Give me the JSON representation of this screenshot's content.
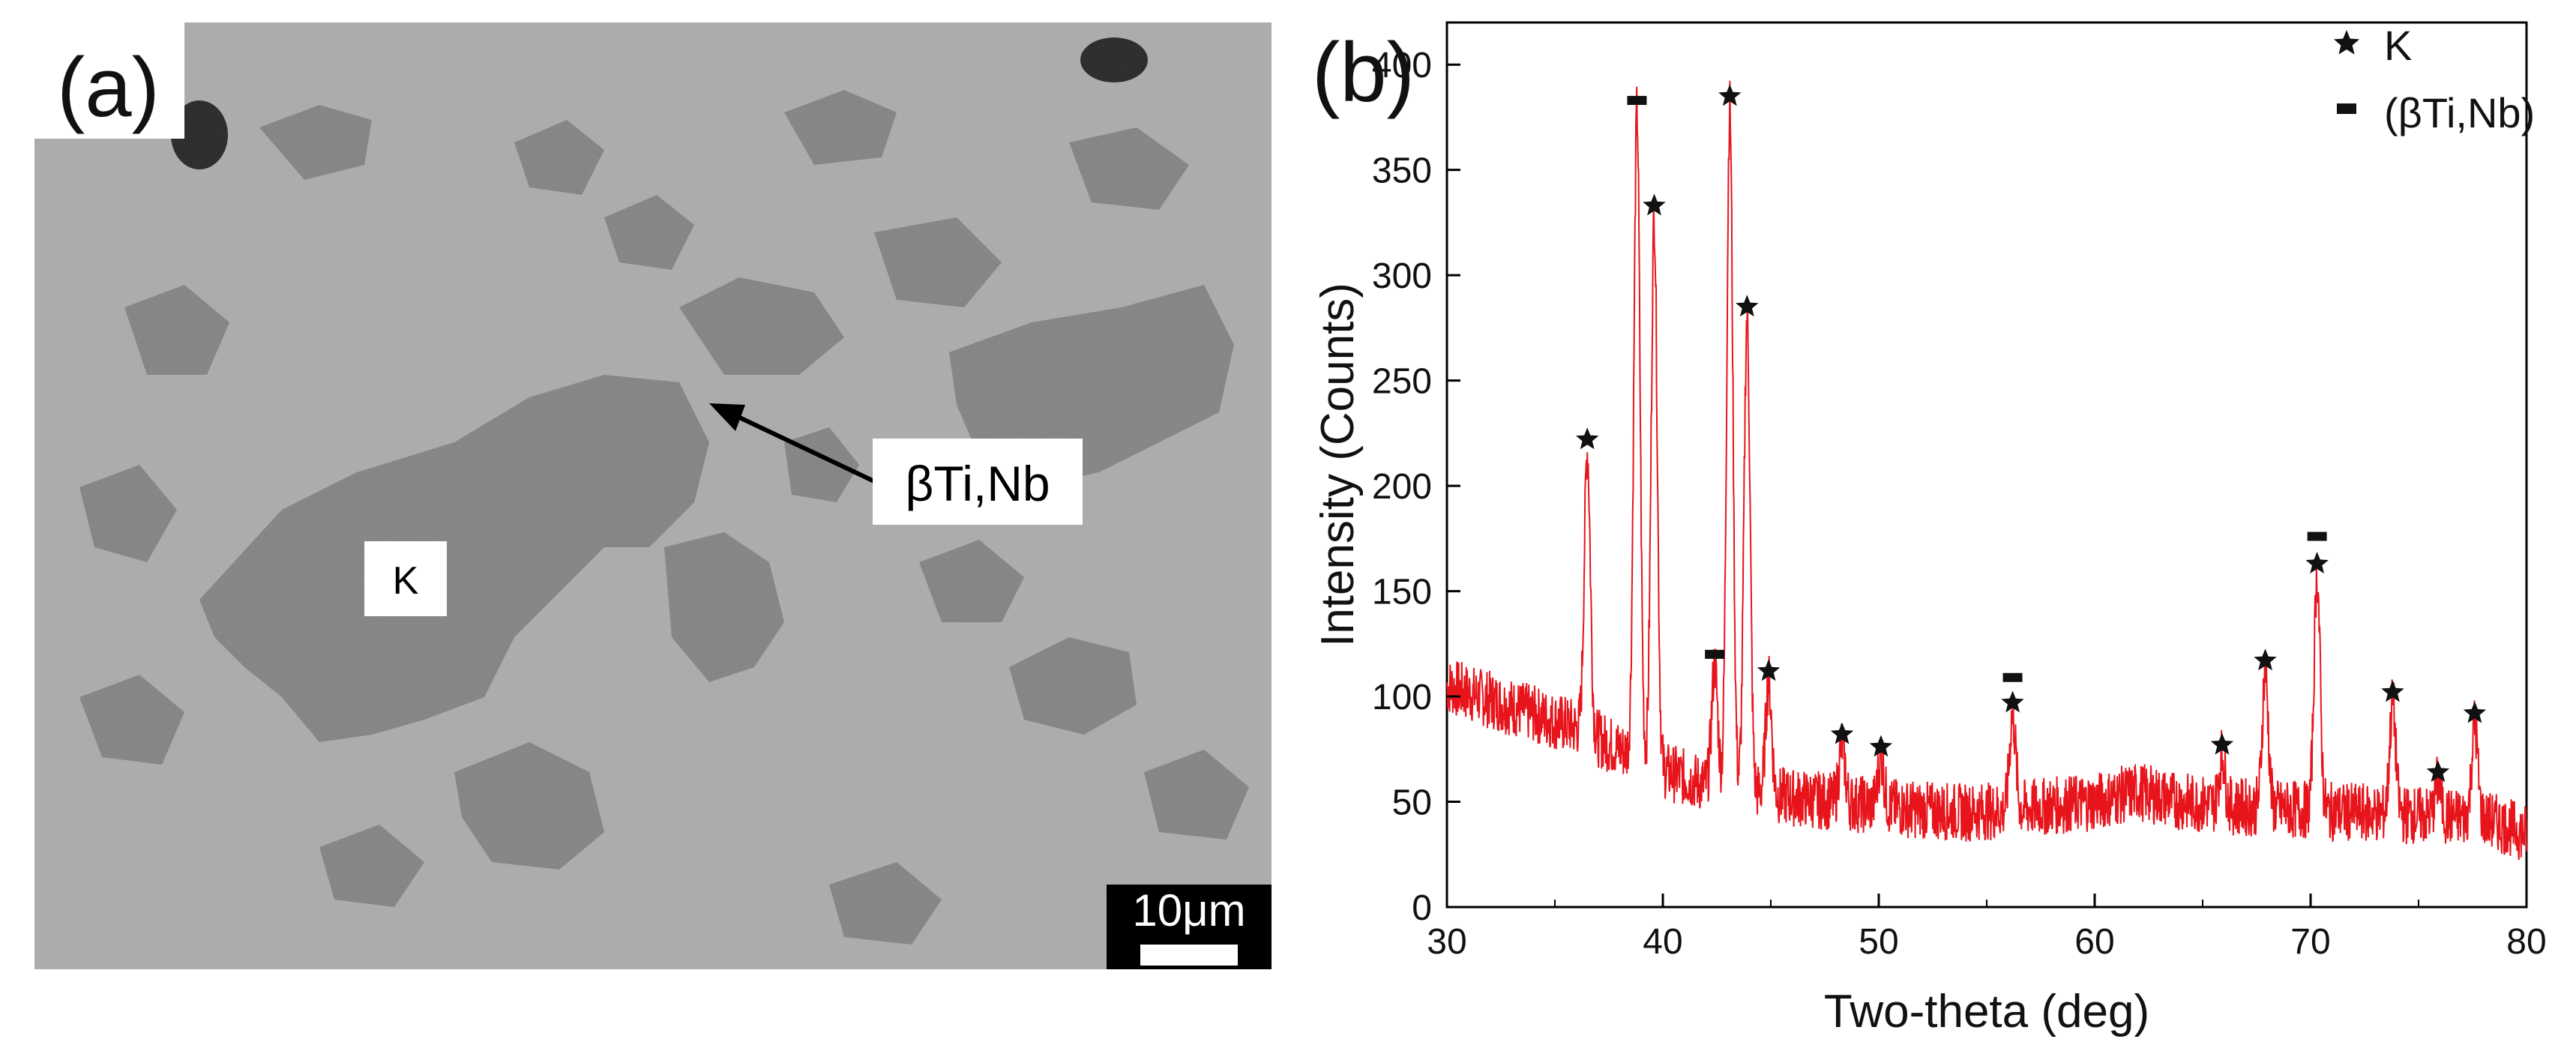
{
  "panel_a": {
    "label": "(a)",
    "arrow_label": "βTi,Nb",
    "phase_label": "K",
    "scale_bar_label": "10μm"
  },
  "chart_data": {
    "type": "line",
    "panel_label": "(b)",
    "xlabel": "Two-theta (deg)",
    "ylabel": "Intensity (Counts)",
    "xlim": [
      30,
      80
    ],
    "ylim": [
      0,
      420
    ],
    "x_ticks": [
      30,
      40,
      50,
      60,
      70,
      80
    ],
    "y_ticks": [
      0,
      50,
      100,
      150,
      200,
      250,
      300,
      350,
      400
    ],
    "grid": false,
    "legend_position": "top-right",
    "series_color": "#e8141c",
    "legend": [
      {
        "symbol": "star",
        "label": "K"
      },
      {
        "symbol": "dash",
        "label": "(βTi,Nb)"
      }
    ],
    "background_profile": [
      [
        30,
        105
      ],
      [
        33,
        95
      ],
      [
        36,
        85
      ],
      [
        38,
        75
      ],
      [
        40,
        65
      ],
      [
        42,
        58
      ],
      [
        44,
        55
      ],
      [
        46,
        52
      ],
      [
        48,
        50
      ],
      [
        50,
        48
      ],
      [
        52,
        46
      ],
      [
        54,
        45
      ],
      [
        56,
        46
      ],
      [
        58,
        48
      ],
      [
        60,
        50
      ],
      [
        62,
        55
      ],
      [
        64,
        50
      ],
      [
        66,
        48
      ],
      [
        68,
        47
      ],
      [
        70,
        46
      ],
      [
        72,
        45
      ],
      [
        74,
        44
      ],
      [
        76,
        43
      ],
      [
        78,
        42
      ],
      [
        80,
        35
      ]
    ],
    "peaks": [
      {
        "x": 36.5,
        "y": 222,
        "marker": "star"
      },
      {
        "x": 38.8,
        "y": 383,
        "marker": "dash"
      },
      {
        "x": 39.6,
        "y": 333,
        "marker": "star"
      },
      {
        "x": 42.4,
        "y": 120,
        "marker": "dash"
      },
      {
        "x": 43.1,
        "y": 385,
        "marker": "star"
      },
      {
        "x": 43.9,
        "y": 285,
        "marker": "star"
      },
      {
        "x": 44.9,
        "y": 112,
        "marker": "star"
      },
      {
        "x": 48.3,
        "y": 82,
        "marker": "star"
      },
      {
        "x": 50.1,
        "y": 76,
        "marker": "star"
      },
      {
        "x": 56.2,
        "y": 97,
        "marker": "star"
      },
      {
        "x": 56.2,
        "y": 109,
        "marker": "dash"
      },
      {
        "x": 65.9,
        "y": 77,
        "marker": "star"
      },
      {
        "x": 67.9,
        "y": 117,
        "marker": "star"
      },
      {
        "x": 70.3,
        "y": 163,
        "marker": "star"
      },
      {
        "x": 70.3,
        "y": 176,
        "marker": "dash"
      },
      {
        "x": 73.8,
        "y": 102,
        "marker": "star"
      },
      {
        "x": 75.9,
        "y": 64,
        "marker": "star"
      },
      {
        "x": 77.6,
        "y": 92,
        "marker": "star"
      }
    ]
  }
}
